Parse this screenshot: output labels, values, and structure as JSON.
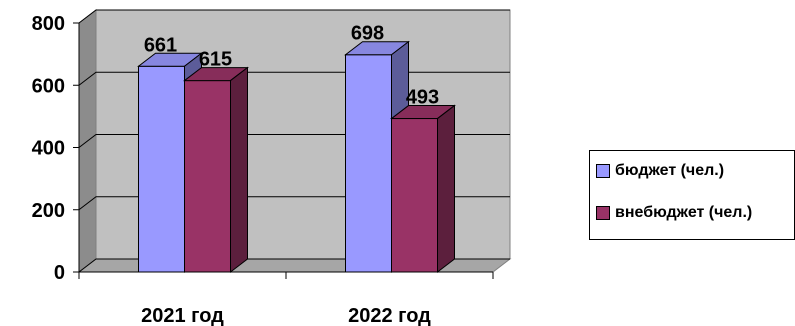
{
  "chart_data": {
    "type": "bar",
    "categories": [
      "2021 год",
      "2022 год"
    ],
    "series": [
      {
        "name": "бюджет (чел.)",
        "values": [
          661,
          698
        ],
        "color": "#9999ff"
      },
      {
        "name": "внебюджет (чел.)",
        "values": [
          615,
          493
        ],
        "color": "#993366"
      }
    ],
    "ylim": [
      0,
      800
    ],
    "yticks": [
      "0",
      "200",
      "400",
      "600",
      "800"
    ],
    "grid": true,
    "legend": "right",
    "style": "3d-clustered-column",
    "wall_color": "#c0c0c0"
  }
}
